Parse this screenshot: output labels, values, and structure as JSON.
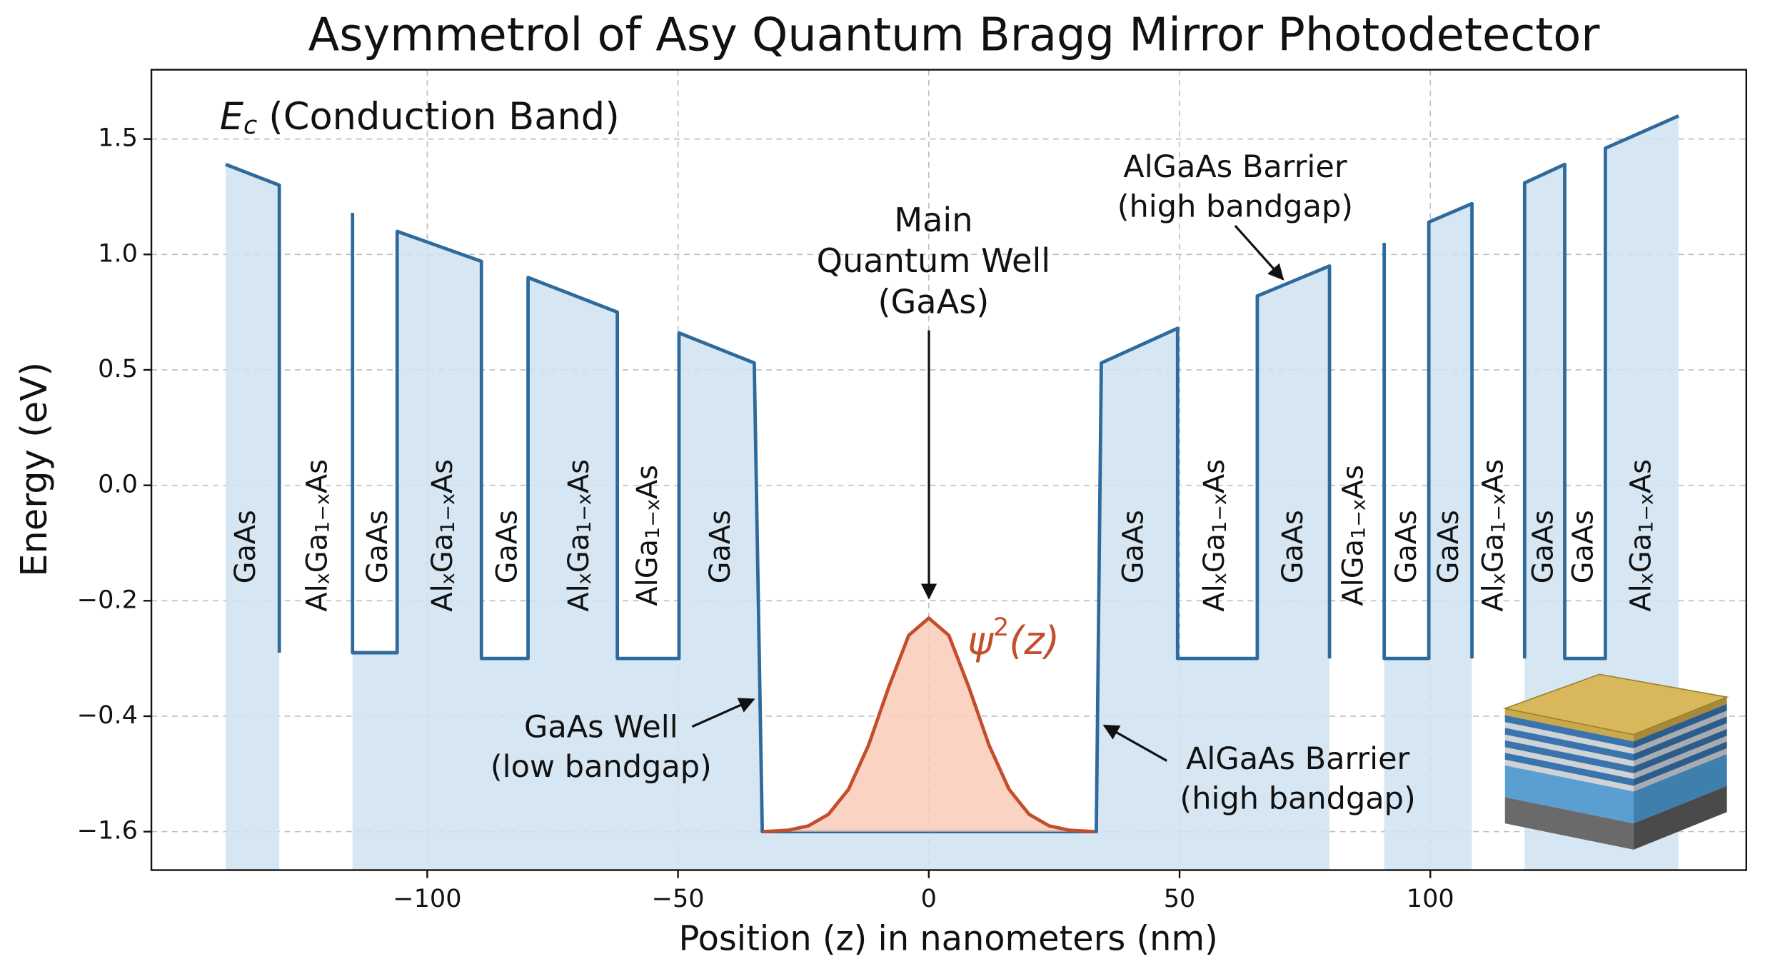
{
  "chart_data": {
    "type": "line",
    "title": "Asymmetrol of Asy Quantum Bragg Mirror Photodetector",
    "xlabel": "Position (z) in nanometers (nm)",
    "ylabel": "Energy (eV)",
    "xlim": [
      -155,
      163
    ],
    "ylim": [
      -2.0,
      1.8
    ],
    "yscale": "tick-spaced",
    "grid": true,
    "xticks": [
      {
        "value": -100,
        "label": "−100"
      },
      {
        "value": -50,
        "label": "−50"
      },
      0,
      50,
      100
    ],
    "yticks": [
      {
        "value": -1.6,
        "label": "−1.6"
      },
      {
        "value": -0.4,
        "label": "−0.4"
      },
      {
        "value": -0.2,
        "label": "−0.2"
      },
      {
        "value": 0,
        "label": "0.0"
      },
      0.5,
      {
        "value": 1,
        "label": "1.0"
      },
      1.5
    ],
    "series": [
      {
        "color": "#2e6a9c",
        "fill": "#cfe3f1",
        "fill_to": "bottom",
        "x": [
          -140.2,
          -129.5,
          -129.5,
          null,
          -114.9,
          -114.9,
          -106.0,
          -106.0,
          -89.2,
          -89.2,
          -79.9,
          -79.9,
          -62.1,
          -62.1,
          -49.8,
          -49.8,
          -34.8,
          -33.2,
          33.4,
          34.4,
          49.6,
          49.6,
          65.5,
          65.5,
          79.9,
          79.9,
          null,
          90.8,
          90.8,
          99.7,
          99.7,
          108.3,
          108.3,
          null,
          118.8,
          118.8,
          126.8,
          126.8,
          134.9,
          134.9,
          149.5
        ],
        "values": [
          1.39,
          1.3,
          -0.29,
          null,
          1.18,
          -0.29,
          -0.29,
          1.1,
          0.97,
          -0.3,
          -0.3,
          0.9,
          0.75,
          -0.3,
          -0.3,
          0.66,
          0.53,
          -1.6,
          -1.6,
          0.53,
          0.68,
          -0.3,
          -0.3,
          0.82,
          0.95,
          -0.3,
          null,
          1.05,
          -0.3,
          -0.3,
          1.14,
          1.22,
          -0.3,
          null,
          -0.3,
          1.31,
          1.39,
          -0.3,
          -0.3,
          1.46,
          1.6
        ]
      },
      {
        "color": "#c44e2b",
        "fill": "#f9cbb9",
        "x": [
          -33,
          -28,
          -24,
          -20,
          -16,
          -12,
          -8,
          -4,
          0,
          4,
          8,
          12,
          16,
          20,
          24,
          28,
          33
        ],
        "values": [
          -1.6,
          -1.585,
          -1.54,
          -1.42,
          -1.16,
          -0.7,
          -0.35,
          -0.26,
          -0.23,
          -0.26,
          -0.35,
          -0.7,
          -1.16,
          -1.42,
          -1.54,
          -1.585,
          -1.6
        ]
      }
    ],
    "band_label": {
      "symbol": "E",
      "subscript": "c",
      "text": "(Conduction Band)"
    },
    "psi_label": {
      "symbol": "ψ",
      "superscript": "2",
      "text": "(z)"
    },
    "annotations": [
      {
        "lines": [
          "Main",
          "Quantum Well",
          "(GaAs)"
        ]
      },
      {
        "lines": [
          "AlGaAs Barrier",
          "(high bandgap)"
        ]
      },
      {
        "lines": [
          "GaAs Well",
          "(low bandgap)"
        ]
      },
      {
        "lines": [
          "AlGaAs Barrier",
          "(high bandgap)"
        ]
      }
    ],
    "layers": [
      {
        "parts": [
          "GaAs"
        ]
      },
      {
        "parts": [
          "Al",
          "x",
          "Ga",
          "1−x",
          "As"
        ]
      },
      {
        "parts": [
          "GaAs"
        ]
      },
      {
        "parts": [
          "Al",
          "x",
          "Ga",
          "1−x",
          "As"
        ]
      },
      {
        "parts": [
          "GaAs"
        ]
      },
      {
        "parts": [
          "Al",
          "x",
          "Ga",
          "1−x",
          "As"
        ]
      },
      {
        "parts": [
          "AlGa",
          "1−x",
          "As"
        ]
      },
      {
        "parts": [
          "GaAs"
        ]
      },
      {
        "parts": [
          "GaAs"
        ]
      },
      {
        "parts": [
          "Al",
          "x",
          "Ga",
          "1−x",
          "As"
        ]
      },
      {
        "parts": [
          "GaAs"
        ]
      },
      {
        "parts": [
          "AlGa",
          "1−x",
          "As"
        ]
      },
      {
        "parts": [
          "GaAs"
        ]
      },
      {
        "parts": [
          "GaAs"
        ]
      },
      {
        "parts": [
          "Al",
          "x",
          "Ga",
          "1−x",
          "As"
        ]
      },
      {
        "parts": [
          "GaAs"
        ]
      },
      {
        "parts": [
          "GaAs"
        ]
      },
      {
        "parts": [
          "Al",
          "x",
          "Ga",
          "1−x",
          "As"
        ]
      }
    ]
  }
}
